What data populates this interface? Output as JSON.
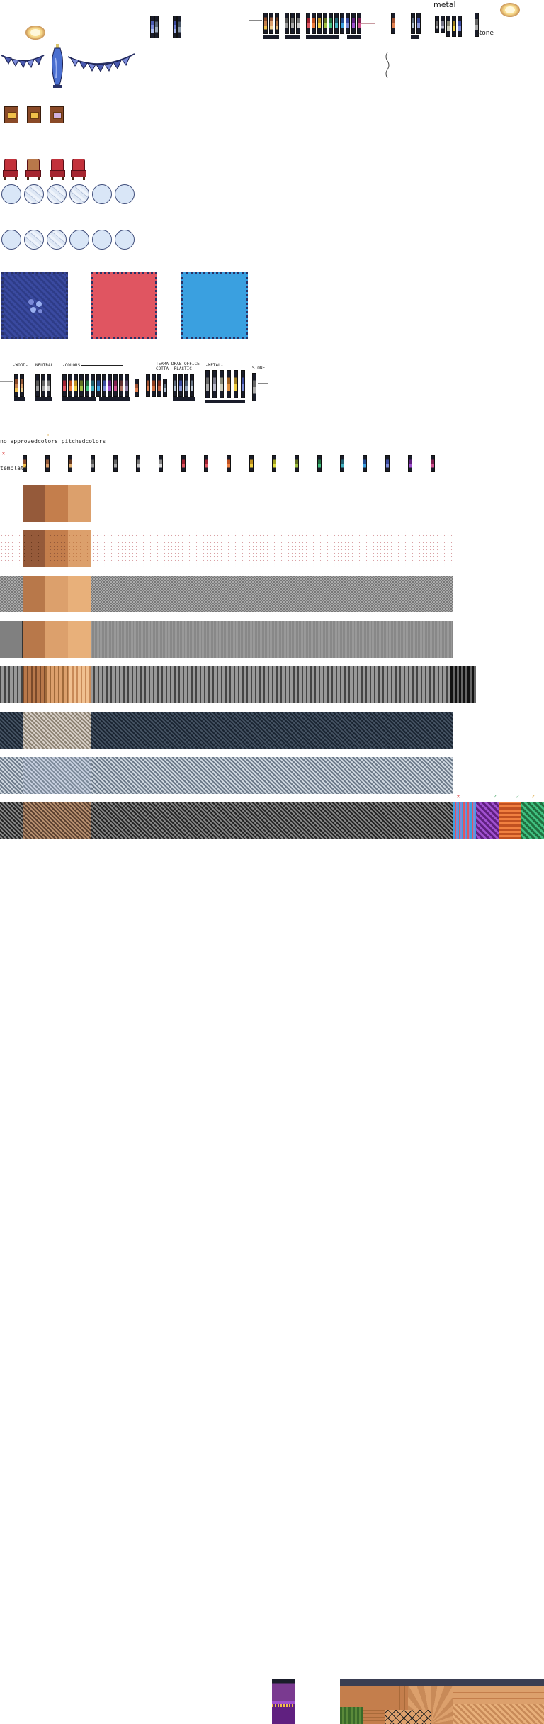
{
  "labels": {
    "metal_top": "metal",
    "stone_top": "stone",
    "wood": "-WOOD-",
    "neutral": "NEUTRAL",
    "colors": "-COLORS",
    "terra_cotta": "TERRA COTTA",
    "drab_office_plastic": "DRAB OFFICE -PLASTIC-",
    "metal": "-METAL-",
    "stone": "STONE",
    "approved_colors": "no_approvedcolors_pitchedcolors_",
    "template": "template"
  },
  "colors": {
    "wood_dark": "#955a3a",
    "wood_mid": "#c47e4c",
    "wood_light": "#dca06c",
    "rug_blue_dark": "#3a4aa0",
    "rug_red": "#e05561",
    "rug_blue": "#3aa0e0",
    "pattern_gray": "#8f8f8f",
    "pattern_slate": "#5a6878"
  },
  "icons": {
    "lamp": "ceiling-lamp-icon",
    "banner": "pennant-banner-icon",
    "vase": "vase-icon",
    "cabinet": "cabinet-icon",
    "chair": "armchair-icon",
    "plate": "plate-icon",
    "rug": "rug-icon"
  }
}
